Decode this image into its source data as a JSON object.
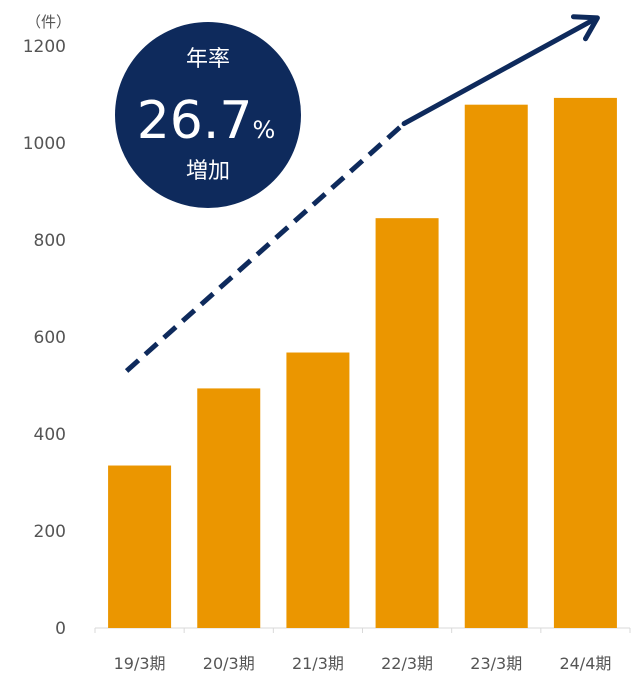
{
  "chart_data": {
    "type": "bar",
    "unit_label": "（件）",
    "categories": [
      "19/3期",
      "20/3期",
      "21/3期",
      "22/3期",
      "23/3期",
      "24/4期"
    ],
    "values": [
      335,
      494,
      568,
      845,
      1079,
      1093
    ],
    "ylim": [
      0,
      1200
    ],
    "yticks": [
      0,
      200,
      400,
      600,
      800,
      1000,
      1200
    ],
    "grid": false,
    "bar_color": "#EB9600",
    "trend_arrow": {
      "style": "dashed-then-solid",
      "color": "#0E2A5C",
      "points": [
        {
          "x": "19/3期",
          "y": 530
        },
        {
          "x": "22/3期",
          "y": 1040
        },
        {
          "x": "24/4期",
          "y": 1260
        }
      ]
    },
    "badge": {
      "line1": "年率",
      "number": "26.7",
      "percent": "%",
      "line3": "増加",
      "color": "#0E2A5C"
    }
  }
}
